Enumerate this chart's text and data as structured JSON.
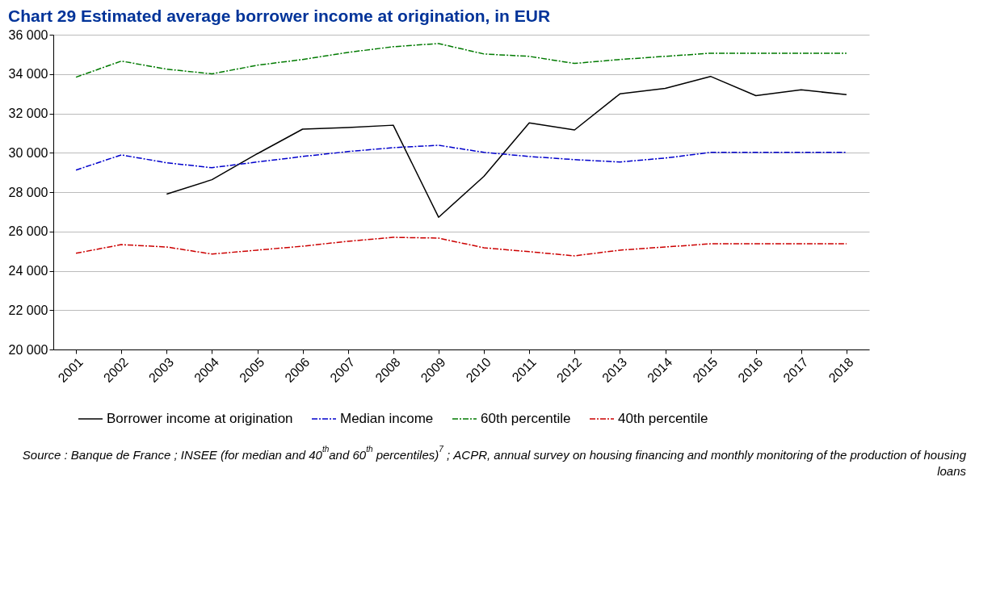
{
  "chart_data": {
    "type": "line",
    "title": "Chart 29     Estimated average borrower income at origination, in EUR",
    "categories": [
      "2001",
      "2002",
      "2003",
      "2004",
      "2005",
      "2006",
      "2007",
      "2008",
      "2009",
      "2010",
      "2011",
      "2012",
      "2013",
      "2014",
      "2015",
      "2016",
      "2017",
      "2018"
    ],
    "series": [
      {
        "name": "Borrower income at origination",
        "color": "#000000",
        "line_style": "solid",
        "values": [
          null,
          null,
          27900,
          28630,
          29950,
          31200,
          31280,
          31400,
          26720,
          28800,
          31520,
          31160,
          32990,
          33270,
          33880,
          32900,
          33200,
          32950
        ]
      },
      {
        "name": "Median income",
        "color": "#0000cc",
        "line_style": "dashed",
        "values": [
          29120,
          29890,
          29490,
          29240,
          29530,
          29810,
          30060,
          30260,
          30380,
          30020,
          29810,
          29650,
          29530,
          29730,
          30020,
          30020,
          30020,
          30020
        ]
      },
      {
        "name": "60th percentile",
        "color": "#007a00",
        "line_style": "dashed",
        "values": [
          33840,
          34660,
          34250,
          34010,
          34450,
          34740,
          35100,
          35390,
          35550,
          35020,
          34900,
          34540,
          34740,
          34900,
          35060,
          35060,
          35060,
          35060
        ]
      },
      {
        "name": "40th percentile",
        "color": "#cc0000",
        "line_style": "dashed",
        "values": [
          24890,
          25330,
          25210,
          24850,
          25050,
          25250,
          25500,
          25700,
          25660,
          25170,
          24970,
          24760,
          25050,
          25210,
          25370,
          25370,
          25370,
          25370
        ]
      }
    ],
    "ylim": [
      20000,
      36000
    ],
    "yticks": [
      {
        "value": 20000,
        "label": "20 000"
      },
      {
        "value": 22000,
        "label": "22 000"
      },
      {
        "value": 24000,
        "label": "24 000"
      },
      {
        "value": 26000,
        "label": "26 000"
      },
      {
        "value": 28000,
        "label": "28 000"
      },
      {
        "value": 30000,
        "label": "30 000"
      },
      {
        "value": 32000,
        "label": "32 000"
      },
      {
        "value": 34000,
        "label": "34 000"
      },
      {
        "value": 36000,
        "label": "36 000"
      }
    ],
    "grid": "y",
    "legend": "bottom",
    "marker": "none",
    "annotations": [
      "Source : Banque de France ; INSEE (for median and 40$^{th}$and 60$^{th}$ percentiles)$^{7}$ ; ACPR, annual survey on housing financing and monthly monitoring of the production of housing loans"
    ]
  }
}
